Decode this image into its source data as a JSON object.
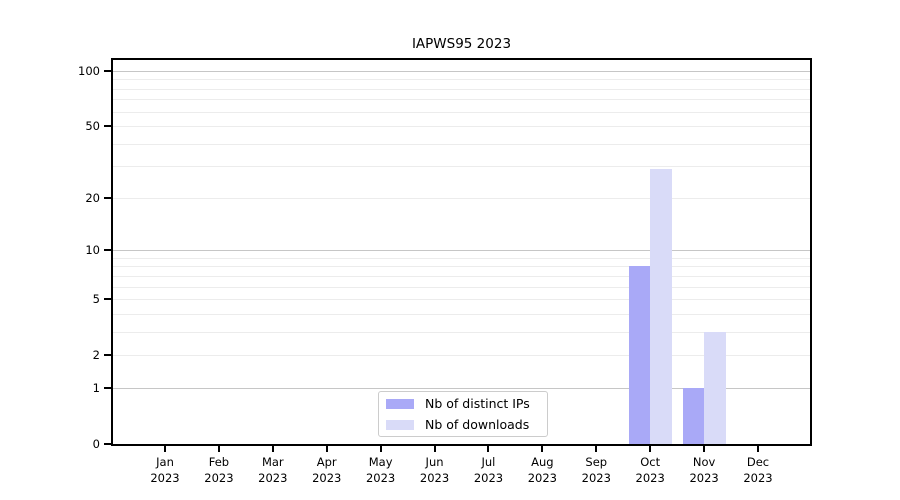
{
  "chart_data": {
    "type": "bar",
    "title": "IAPWS95 2023",
    "y_scale": "log1p",
    "categories": [
      "Jan",
      "Feb",
      "Mar",
      "Apr",
      "May",
      "Jun",
      "Jul",
      "Aug",
      "Sep",
      "Oct",
      "Nov",
      "Dec"
    ],
    "x_tick_second_line": "2023",
    "series": [
      {
        "name": "Nb of distinct IPs",
        "color": "#a9a9f7",
        "values": [
          0,
          0,
          0,
          0,
          0,
          0,
          0,
          0,
          0,
          8,
          1,
          0
        ]
      },
      {
        "name": "Nb of downloads",
        "color": "#d9dbf8",
        "values": [
          0,
          0,
          0,
          0,
          0,
          0,
          0,
          0,
          0,
          29,
          3,
          0
        ]
      }
    ],
    "y_axis": {
      "tick_labels": [
        0,
        1,
        2,
        5,
        10,
        20,
        50,
        100
      ],
      "major_gridlines": [
        1,
        10,
        100
      ],
      "minor_gridlines": [
        2,
        3,
        4,
        5,
        6,
        7,
        8,
        9,
        20,
        30,
        40,
        50,
        60,
        70,
        80,
        90
      ],
      "ymin": 0,
      "ymax": 115
    },
    "legend": {
      "position": "lower-center"
    },
    "colors": {
      "grid_major": "#c6c6c6",
      "grid_minor": "#ececec",
      "axis": "#000000",
      "background": "#ffffff",
      "text": "#000000"
    }
  }
}
